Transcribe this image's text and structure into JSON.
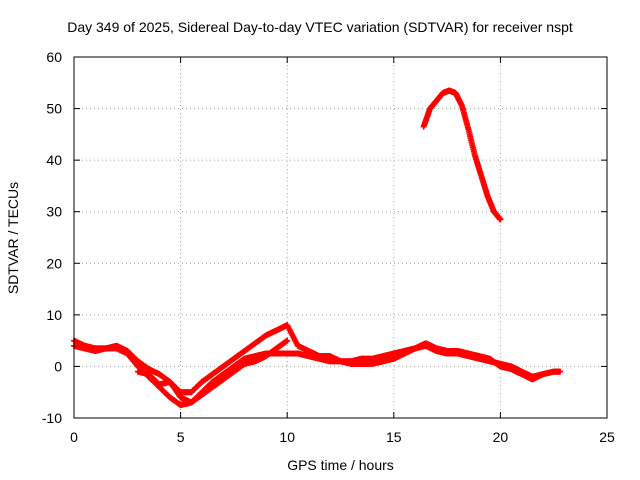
{
  "chart_data": {
    "type": "scatter",
    "title": "Day 349 of 2025, Sidereal Day-to-day VTEC variation (SDTVAR) for receiver nspt",
    "xlabel": "GPS time / hours",
    "ylabel": "SDTVAR / TECUs",
    "xlim": [
      0,
      25
    ],
    "ylim": [
      -10,
      60
    ],
    "xticks": [
      "0",
      "5",
      "10",
      "15",
      "20",
      "25"
    ],
    "yticks": [
      "-10",
      "0",
      "10",
      "20",
      "30",
      "40",
      "50",
      "60"
    ],
    "grid": true,
    "marker_color": "#ff0000",
    "series": [
      {
        "name": "main-track-a",
        "x": [
          0,
          0.5,
          1.0,
          1.5,
          2.0,
          2.5,
          3.0,
          3.5,
          4.0,
          4.5,
          5.0,
          5.5,
          6.0,
          6.5,
          7.0,
          7.5,
          8.0,
          8.5,
          9.0,
          9.5,
          10.0,
          10.5,
          11.0,
          11.5,
          12.0,
          12.5,
          13.0,
          13.5,
          14.0,
          14.5,
          15.0,
          15.5,
          16.0,
          16.5,
          17.0,
          17.5,
          18.0,
          18.5,
          19.0,
          19.5,
          20.0,
          20.5,
          21.0,
          21.5,
          22.0,
          22.5,
          22.8
        ],
        "y": [
          5,
          4,
          3.5,
          3.5,
          3.5,
          2.5,
          0,
          -2,
          -4,
          -6,
          -7.5,
          -7,
          -5,
          -3,
          -1.5,
          0,
          1.5,
          2,
          2.5,
          2.5,
          2.5,
          2.5,
          2,
          1.5,
          1,
          1,
          0.5,
          0.5,
          0.5,
          1,
          1.5,
          2.5,
          3.5,
          4,
          3,
          2.5,
          2.5,
          2,
          1.5,
          1,
          0.5,
          0,
          -1,
          -2,
          -1.5,
          -1,
          -1
        ]
      },
      {
        "name": "main-track-b",
        "x": [
          0,
          0.5,
          1.0,
          1.5,
          2.0,
          2.5,
          3.0,
          3.5,
          4.0,
          4.5,
          5.0,
          5.5,
          6.0,
          6.5,
          7.0,
          7.5,
          8.0,
          8.5,
          9.0,
          9.5,
          10.0,
          10.5,
          11.0,
          11.5,
          12.0,
          12.5,
          13.0,
          13.5,
          14.0,
          14.5,
          15.0,
          15.5,
          16.0,
          16.5,
          17.0,
          17.5,
          18.0,
          18.5,
          19.0,
          19.5,
          20.0,
          20.5,
          21.0,
          21.5,
          22.0
        ],
        "y": [
          4,
          3.5,
          3,
          3.5,
          4,
          3,
          1,
          -0.5,
          -1.5,
          -3,
          -5,
          -5,
          -3,
          -1.5,
          0,
          1.5,
          3,
          4.5,
          6,
          7,
          8,
          4,
          3,
          2,
          2,
          1,
          1,
          1.5,
          1.5,
          2,
          2.5,
          3,
          3.5,
          4.5,
          3.5,
          3,
          3,
          2.5,
          2,
          1.5,
          0,
          -0.5,
          -1.5,
          -2.5,
          -1.5
        ]
      },
      {
        "name": "main-track-c",
        "x": [
          3.0,
          3.5,
          4.0,
          4.5,
          5.0,
          5.5,
          6.0,
          6.5,
          7.0,
          7.5,
          8.0,
          8.5,
          9.0,
          9.5,
          10.0
        ],
        "y": [
          -1,
          -1.5,
          -3.5,
          -3,
          -6,
          -7,
          -5.5,
          -4,
          -2.5,
          -1,
          0.5,
          1,
          2,
          3.5,
          5
        ]
      },
      {
        "name": "high-arc",
        "x": [
          16.4,
          16.7,
          17.0,
          17.3,
          17.6,
          17.9,
          18.2,
          18.5,
          18.8,
          19.1,
          19.4,
          19.7,
          20.0
        ],
        "y": [
          46.5,
          50,
          51.5,
          53,
          53.5,
          53,
          50.5,
          46,
          41,
          37,
          33,
          30,
          28.5
        ]
      }
    ]
  }
}
